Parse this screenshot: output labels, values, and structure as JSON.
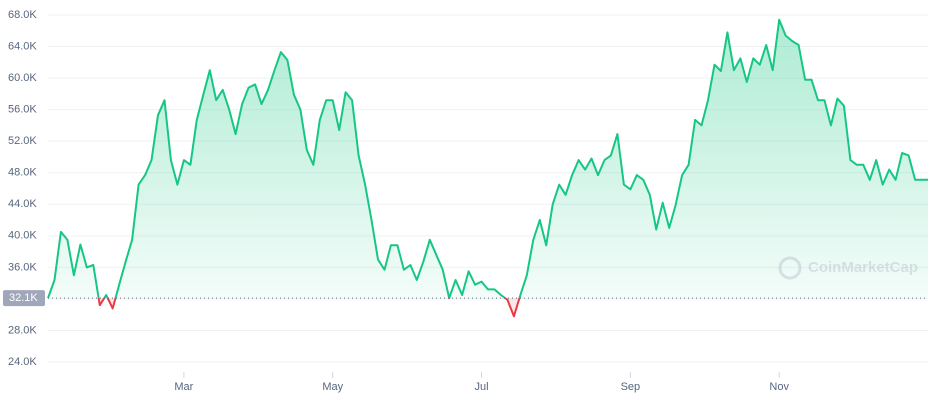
{
  "chart_data": {
    "type": "line",
    "categories": [
      null,
      null,
      null,
      null,
      null,
      null,
      null,
      null,
      null,
      null,
      null,
      null,
      null,
      null,
      null,
      null,
      null,
      null,
      null,
      null,
      null,
      "Mar",
      null,
      null,
      null,
      null,
      null,
      null,
      null,
      null,
      null,
      null,
      null,
      null,
      null,
      null,
      null,
      null,
      null,
      null,
      null,
      null,
      null,
      null,
      "May",
      null,
      null,
      null,
      null,
      null,
      null,
      null,
      null,
      null,
      null,
      null,
      null,
      null,
      null,
      null,
      null,
      null,
      null,
      null,
      null,
      null,
      null,
      "Jul",
      null,
      null,
      null,
      null,
      null,
      null,
      null,
      null,
      null,
      null,
      null,
      null,
      null,
      null,
      null,
      null,
      null,
      null,
      null,
      null,
      null,
      null,
      "Sep",
      null,
      null,
      null,
      null,
      null,
      null,
      null,
      null,
      null,
      null,
      null,
      null,
      null,
      null,
      null,
      null,
      null,
      null,
      null,
      null,
      null,
      null,
      "Nov",
      null,
      null,
      null,
      null,
      null,
      null,
      null,
      null,
      null,
      null,
      null,
      null,
      null,
      null,
      null,
      null,
      null,
      null,
      null,
      null,
      null,
      null,
      null
    ],
    "values": [
      32.1,
      34.4,
      40.5,
      39.5,
      35,
      38.9,
      36,
      36.3,
      31.2,
      32.5,
      30.8,
      33.8,
      36.7,
      39.5,
      46.5,
      47.7,
      49.6,
      55.3,
      57.2,
      49.6,
      46.5,
      49.6,
      49,
      54.7,
      57.9,
      61,
      57.2,
      58.5,
      56,
      52.9,
      56.7,
      58.8,
      59.2,
      56.7,
      58.5,
      61,
      63.3,
      62.3,
      57.9,
      56,
      50.9,
      49,
      54.7,
      57.2,
      57.2,
      53.4,
      58.2,
      57.2,
      50.2,
      46.5,
      42,
      37,
      35.7,
      38.8,
      38.8,
      35.7,
      36.3,
      34.4,
      36.7,
      39.5,
      37.6,
      35.7,
      32.1,
      34.4,
      32.5,
      35.5,
      33.8,
      34.2,
      33.2,
      33.2,
      32.5,
      31.9,
      29.8,
      32.5,
      35,
      39.5,
      42,
      38.8,
      44,
      46.5,
      45.2,
      47.7,
      49.6,
      48.4,
      49.8,
      47.7,
      49.6,
      50.2,
      52.9,
      46.5,
      45.9,
      47.7,
      47.1,
      45.2,
      40.8,
      44.2,
      41,
      43.9,
      47.7,
      49,
      54.7,
      54,
      57.2,
      61.7,
      60.9,
      65.8,
      61,
      62.5,
      59.5,
      62.5,
      61.7,
      64.2,
      61,
      67.4,
      65.4,
      64.7,
      64.2,
      59.8,
      59.8,
      57.2,
      57.2,
      54,
      57.4,
      56.5,
      49.6,
      49,
      49,
      47.1,
      49.6,
      46.5,
      48.4,
      47.1,
      50.5,
      50.2,
      47.1,
      47.1,
      47.1
    ],
    "ylim": [
      24,
      68
    ],
    "yticks": [
      {
        "value": 24,
        "label": "24.0K"
      },
      {
        "value": 28,
        "label": "28.0K"
      },
      {
        "value": 32,
        "label": "32.0K"
      },
      {
        "value": 36,
        "label": "36.0K"
      },
      {
        "value": 40,
        "label": "40.0K"
      },
      {
        "value": 44,
        "label": "44.0K"
      },
      {
        "value": 48,
        "label": "48.0K"
      },
      {
        "value": 52,
        "label": "52.0K"
      },
      {
        "value": 56,
        "label": "56.0K"
      },
      {
        "value": 60,
        "label": "60.0K"
      },
      {
        "value": 64,
        "label": "64.0K"
      },
      {
        "value": 68,
        "label": "68.0K"
      }
    ],
    "baseline": {
      "value": 32.1,
      "label": "32.1K"
    },
    "color": "#16c784",
    "below_color": "#ea3943",
    "grid": true,
    "watermark": "CoinMarketCap"
  }
}
